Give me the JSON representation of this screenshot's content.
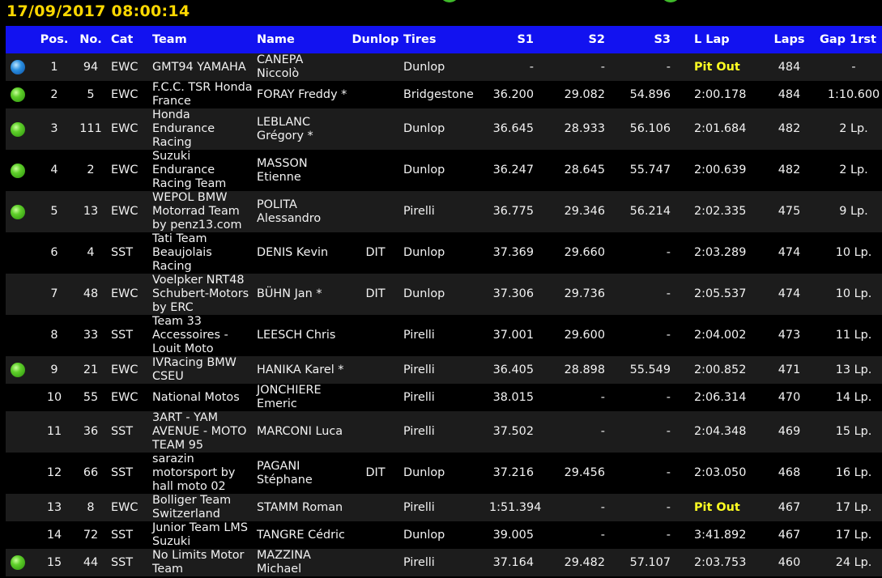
{
  "datetime": "17/09/2017 08:00:14",
  "colors": {
    "header_bg": "#1212f0",
    "datetime": "#ffd800",
    "pit_out": "#ffff22",
    "row_dark": "#1c1c1c",
    "row_black": "#000000"
  },
  "columns": {
    "status": "",
    "pos": "Pos.",
    "no": "No.",
    "cat": "Cat",
    "team": "Team",
    "name": "Name",
    "dunlop": "Dunlop",
    "tires": "Tires",
    "s1": "S1",
    "s2": "S2",
    "s3": "S3",
    "llap": "L Lap",
    "laps": "Laps",
    "gap": "Gap 1rst"
  },
  "rows": [
    {
      "status": "blue",
      "pos": "1",
      "no": "94",
      "cat": "EWC",
      "team": "GMT94 YAMAHA",
      "name": "CANEPA Niccolò",
      "dunlop": "",
      "tires": "Dunlop",
      "s1": "-",
      "s2": "-",
      "s3": "-",
      "llap": "Pit Out",
      "llap_pitout": true,
      "laps": "484",
      "gap": "-"
    },
    {
      "status": "green",
      "pos": "2",
      "no": "5",
      "cat": "EWC",
      "team": "F.C.C. TSR Honda France",
      "name": "FORAY Freddy *",
      "dunlop": "",
      "tires": "Bridgestone",
      "s1": "36.200",
      "s2": "29.082",
      "s3": "54.896",
      "llap": "2:00.178",
      "llap_pitout": false,
      "laps": "484",
      "gap": "1:10.600"
    },
    {
      "status": "green",
      "pos": "3",
      "no": "111",
      "cat": "EWC",
      "team": "Honda Endurance Racing",
      "name": "LEBLANC Grégory *",
      "dunlop": "",
      "tires": "Dunlop",
      "s1": "36.645",
      "s2": "28.933",
      "s3": "56.106",
      "llap": "2:01.684",
      "llap_pitout": false,
      "laps": "482",
      "gap": "2 Lp."
    },
    {
      "status": "green",
      "pos": "4",
      "no": "2",
      "cat": "EWC",
      "team": "Suzuki Endurance Racing Team",
      "name": "MASSON Etienne",
      "dunlop": "",
      "tires": "Dunlop",
      "s1": "36.247",
      "s2": "28.645",
      "s3": "55.747",
      "llap": "2:00.639",
      "llap_pitout": false,
      "laps": "482",
      "gap": "2 Lp."
    },
    {
      "status": "green",
      "pos": "5",
      "no": "13",
      "cat": "EWC",
      "team": "WEPOL BMW Motorrad Team by penz13.com",
      "name": "POLITA Alessandro",
      "dunlop": "",
      "tires": "Pirelli",
      "s1": "36.775",
      "s2": "29.346",
      "s3": "56.214",
      "llap": "2:02.335",
      "llap_pitout": false,
      "laps": "475",
      "gap": "9 Lp."
    },
    {
      "status": "none",
      "pos": "6",
      "no": "4",
      "cat": "SST",
      "team": "Tati Team Beaujolais Racing",
      "name": "DENIS Kevin",
      "dunlop": "DIT",
      "tires": "Dunlop",
      "s1": "37.369",
      "s2": "29.660",
      "s3": "-",
      "llap": "2:03.289",
      "llap_pitout": false,
      "laps": "474",
      "gap": "10 Lp."
    },
    {
      "status": "none",
      "pos": "7",
      "no": "48",
      "cat": "EWC",
      "team": "Voelpker NRT48 Schubert-Motors by ERC",
      "name": "BÜHN Jan *",
      "dunlop": "DIT",
      "tires": "Dunlop",
      "s1": "37.306",
      "s2": "29.736",
      "s3": "-",
      "llap": "2:05.537",
      "llap_pitout": false,
      "laps": "474",
      "gap": "10 Lp."
    },
    {
      "status": "none",
      "pos": "8",
      "no": "33",
      "cat": "SST",
      "team": "Team 33 Accessoires - Louit Moto",
      "name": "LEESCH Chris",
      "dunlop": "",
      "tires": "Pirelli",
      "s1": "37.001",
      "s2": "29.600",
      "s3": "-",
      "llap": "2:04.002",
      "llap_pitout": false,
      "laps": "473",
      "gap": "11 Lp."
    },
    {
      "status": "green",
      "pos": "9",
      "no": "21",
      "cat": "EWC",
      "team": "IVRacing BMW CSEU",
      "name": "HANIKA Karel *",
      "dunlop": "",
      "tires": "Pirelli",
      "s1": "36.405",
      "s2": "28.898",
      "s3": "55.549",
      "llap": "2:00.852",
      "llap_pitout": false,
      "laps": "471",
      "gap": "13 Lp."
    },
    {
      "status": "none",
      "pos": "10",
      "no": "55",
      "cat": "EWC",
      "team": "National Motos",
      "name": "JONCHIERE Emeric",
      "dunlop": "",
      "tires": "Pirelli",
      "s1": "38.015",
      "s2": "-",
      "s3": "-",
      "llap": "2:06.314",
      "llap_pitout": false,
      "laps": "470",
      "gap": "14 Lp."
    },
    {
      "status": "none",
      "pos": "11",
      "no": "36",
      "cat": "SST",
      "team": "3ART - YAM AVENUE - MOTO TEAM 95",
      "name": "MARCONI Luca",
      "dunlop": "",
      "tires": "Pirelli",
      "s1": "37.502",
      "s2": "-",
      "s3": "-",
      "llap": "2:04.348",
      "llap_pitout": false,
      "laps": "469",
      "gap": "15 Lp."
    },
    {
      "status": "none",
      "pos": "12",
      "no": "66",
      "cat": "SST",
      "team": "sarazin motorsport by hall moto 02",
      "name": "PAGANI Stéphane",
      "dunlop": "DIT",
      "tires": "Dunlop",
      "s1": "37.216",
      "s2": "29.456",
      "s3": "-",
      "llap": "2:03.050",
      "llap_pitout": false,
      "laps": "468",
      "gap": "16 Lp."
    },
    {
      "status": "none",
      "pos": "13",
      "no": "8",
      "cat": "EWC",
      "team": "Bolliger Team Switzerland",
      "name": "STAMM Roman",
      "dunlop": "",
      "tires": "Pirelli",
      "s1": "1:51.394",
      "s2": "-",
      "s3": "-",
      "llap": "Pit Out",
      "llap_pitout": true,
      "laps": "467",
      "gap": "17 Lp."
    },
    {
      "status": "none",
      "pos": "14",
      "no": "72",
      "cat": "SST",
      "team": "Junior Team LMS Suzuki",
      "name": "TANGRE Cédric",
      "dunlop": "",
      "tires": "Dunlop",
      "s1": "39.005",
      "s2": "-",
      "s3": "-",
      "llap": "3:41.892",
      "llap_pitout": false,
      "laps": "467",
      "gap": "17 Lp."
    },
    {
      "status": "green",
      "pos": "15",
      "no": "44",
      "cat": "SST",
      "team": "No Limits Motor Team",
      "name": "MAZZINA Michael",
      "dunlop": "",
      "tires": "Pirelli",
      "s1": "37.164",
      "s2": "29.482",
      "s3": "57.107",
      "llap": "2:03.753",
      "llap_pitout": false,
      "laps": "460",
      "gap": "24 Lp."
    }
  ]
}
